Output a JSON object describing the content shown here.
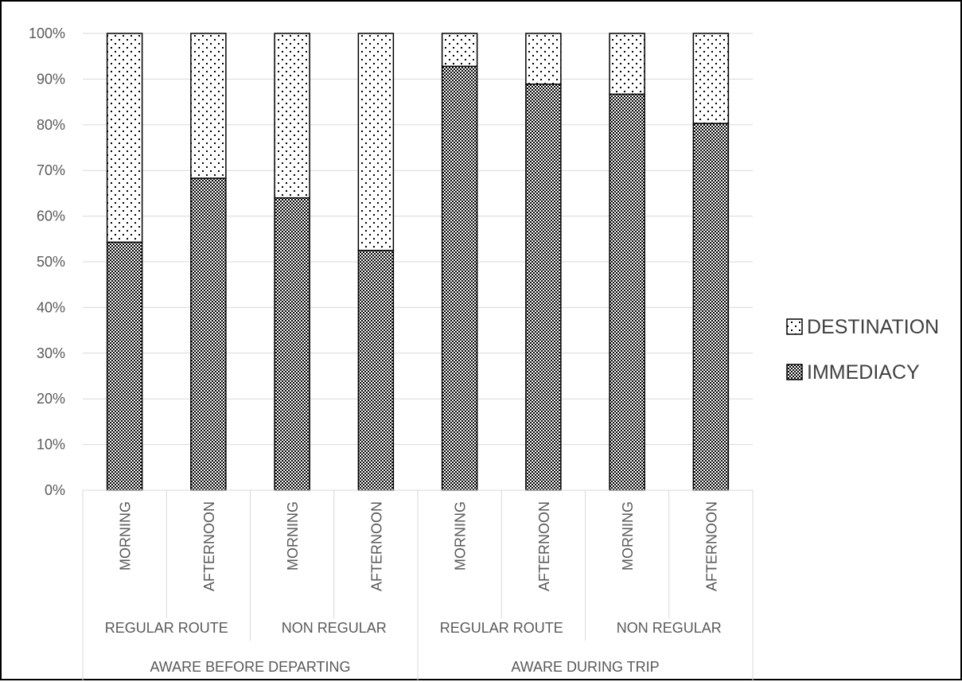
{
  "chart_data": {
    "type": "bar",
    "stacked": true,
    "percent": true,
    "title": "",
    "xlabel": "",
    "ylabel": "",
    "ylim": [
      0,
      100
    ],
    "y_ticks": [
      "0%",
      "10%",
      "20%",
      "30%",
      "40%",
      "50%",
      "60%",
      "70%",
      "80%",
      "90%",
      "100%"
    ],
    "grid": true,
    "legend_position": "right",
    "categories": [
      "MORNING",
      "AFTERNOON",
      "MORNING",
      "AFTERNOON",
      "MORNING",
      "AFTERNOON",
      "MORNING",
      "AFTERNOON"
    ],
    "group_level_2": [
      {
        "label": "REGULAR ROUTE",
        "span": 2
      },
      {
        "label": "NON REGULAR",
        "span": 2
      },
      {
        "label": "REGULAR ROUTE",
        "span": 2
      },
      {
        "label": "NON REGULAR",
        "span": 2
      }
    ],
    "group_level_3": [
      {
        "label": "AWARE BEFORE DEPARTING",
        "span": 4
      },
      {
        "label": "AWARE DURING TRIP",
        "span": 4
      }
    ],
    "series": [
      {
        "name": "IMMEDIACY",
        "pattern": "checker",
        "values": [
          54.3,
          68.3,
          64.0,
          52.5,
          92.8,
          88.9,
          86.7,
          80.3
        ]
      },
      {
        "name": "DESTINATION",
        "pattern": "dots",
        "values": [
          45.7,
          31.7,
          36.0,
          47.5,
          7.2,
          11.1,
          13.3,
          19.7
        ]
      }
    ],
    "legend": [
      {
        "name": "DESTINATION",
        "pattern": "dots"
      },
      {
        "name": "IMMEDIACY",
        "pattern": "checker"
      }
    ],
    "colors": {
      "stroke": "#000000",
      "grid": "#d9d9d9",
      "axis_text": "#595959",
      "legend_text": "#404040"
    }
  }
}
